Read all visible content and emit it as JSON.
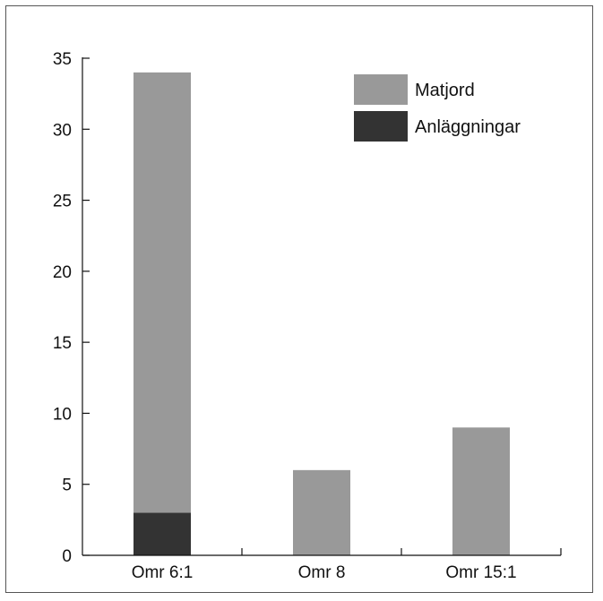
{
  "chart_data": {
    "type": "bar",
    "stacked": true,
    "categories": [
      "Omr 6:1",
      "Omr 8",
      "Omr 15:1"
    ],
    "series": [
      {
        "name": "Anläggningar",
        "values": [
          3,
          0,
          0
        ],
        "color": "#333333"
      },
      {
        "name": "Matjord",
        "values": [
          31,
          6,
          9
        ],
        "color": "#999999"
      }
    ],
    "title": "",
    "xlabel": "",
    "ylabel": "",
    "ylim": [
      0,
      35
    ],
    "yticks": [
      0,
      5,
      10,
      15,
      20,
      25,
      30,
      35
    ],
    "ytick_labels": [
      "0",
      "5",
      "10",
      "15",
      "20",
      "25",
      "30",
      "35"
    ],
    "legend": {
      "placement": "top-right",
      "entries": [
        {
          "name": "Matjord",
          "color": "#999999"
        },
        {
          "name": "Anläggningar",
          "color": "#333333"
        }
      ]
    },
    "grid": false
  }
}
